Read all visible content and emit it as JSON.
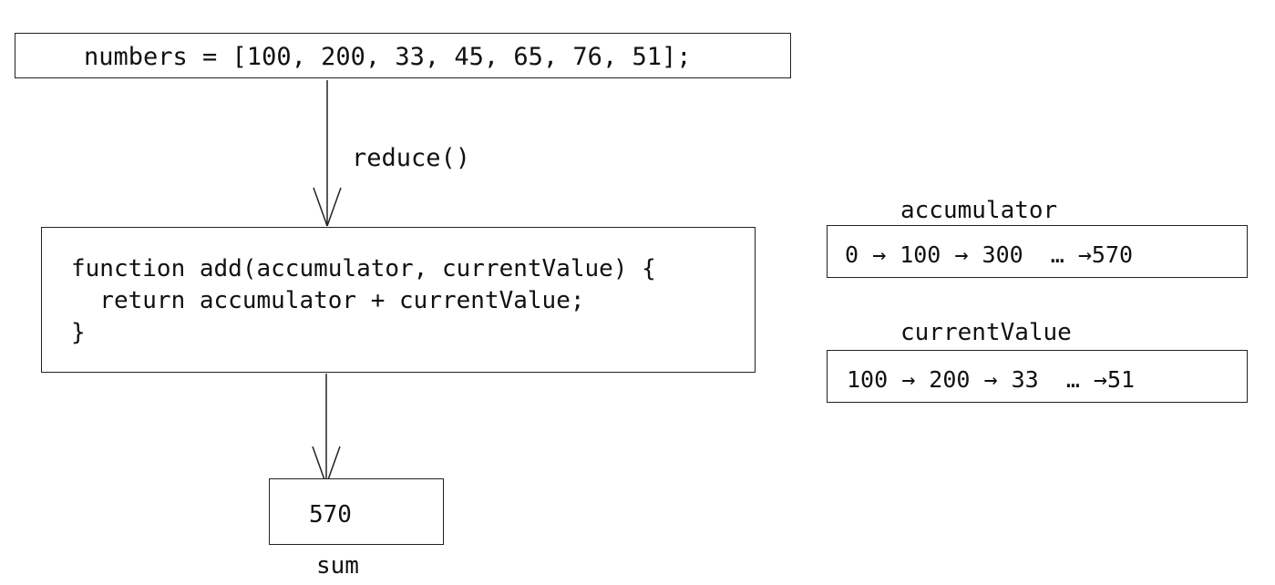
{
  "input": {
    "code": "numbers = [100, 200, 33, 45, 65, 76, 51];"
  },
  "edge_label": "reduce()",
  "function_box": {
    "lines": [
      "function add(accumulator, currentValue) {",
      "  return accumulator + currentValue;",
      "}"
    ]
  },
  "result": {
    "value": "570",
    "caption": "sum"
  },
  "accumulator": {
    "label": "accumulator",
    "sequence": "0 → 100 → 300  … →570"
  },
  "current_value": {
    "label": "currentValue",
    "sequence": "100 → 200 → 33  … →51"
  },
  "colors": {
    "stroke": "#222222",
    "text": "#111111",
    "background": "#ffffff"
  }
}
